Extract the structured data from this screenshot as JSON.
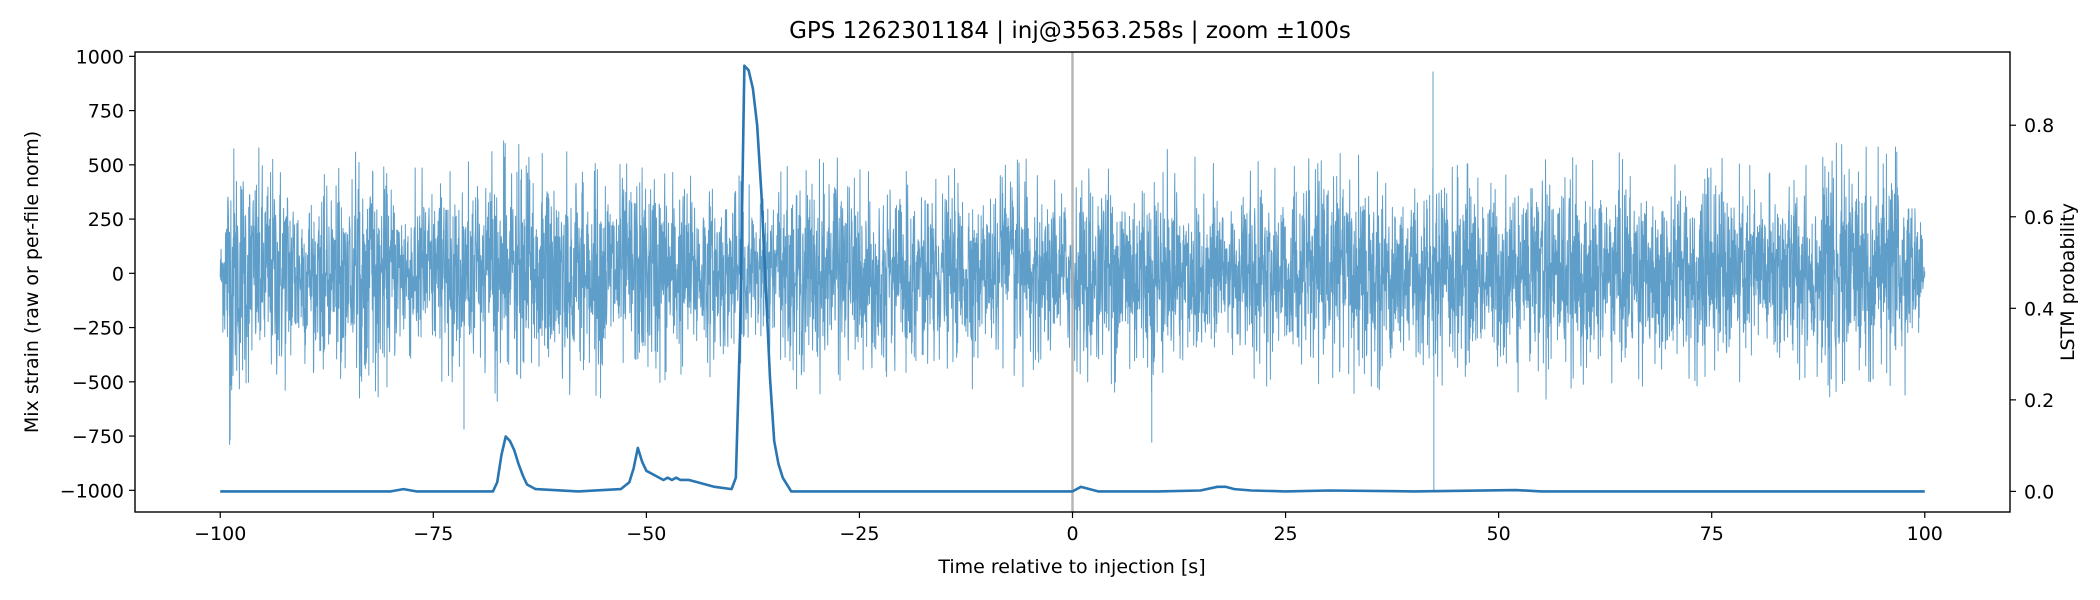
{
  "chart_data": {
    "type": "line",
    "title": "GPS 1262301184 | inj@3563.258s | zoom ±100s",
    "xlabel": "Time relative to injection [s]",
    "ylabel": "Mix strain (raw or per-file norm)",
    "y2label": "LSTM probability",
    "xlim": [
      -110,
      110
    ],
    "ylim": [
      -1100,
      1020
    ],
    "y2lim": [
      -0.045,
      0.96
    ],
    "x_ticks": [
      -100,
      -75,
      -50,
      -25,
      0,
      25,
      50,
      75,
      100
    ],
    "x_tick_labels": [
      "−100",
      "−75",
      "−50",
      "−25",
      "0",
      "25",
      "50",
      "75",
      "100"
    ],
    "y_ticks": [
      -1000,
      -750,
      -500,
      -250,
      0,
      250,
      500,
      750,
      1000
    ],
    "y_tick_labels": [
      "−1000",
      "−750",
      "−500",
      "−250",
      "0",
      "250",
      "500",
      "750",
      "1000"
    ],
    "y2_ticks": [
      0.0,
      0.2,
      0.4,
      0.6,
      0.8
    ],
    "y2_tick_labels": [
      "0.0",
      "0.2",
      "0.4",
      "0.6",
      "0.8"
    ],
    "grid": false,
    "vline": {
      "x": 0,
      "color": "#b0b0b0"
    },
    "series": [
      {
        "axis": "left",
        "color": "#5f9ec9",
        "x_range": [
          -100,
          100
        ],
        "typical_amplitude": 300,
        "envelope": [
          [
            -100,
            150
          ],
          [
            -99,
            780
          ],
          [
            -96,
            600
          ],
          [
            -93,
            650
          ],
          [
            -90,
            500
          ],
          [
            -88,
            450
          ],
          [
            -85,
            560
          ],
          [
            -82,
            600
          ],
          [
            -79,
            480
          ],
          [
            -76,
            500
          ],
          [
            -73,
            520
          ],
          [
            -70,
            550
          ],
          [
            -66,
            640
          ],
          [
            -63,
            560
          ],
          [
            -60,
            600
          ],
          [
            -56,
            580
          ],
          [
            -52,
            560
          ],
          [
            -48,
            600
          ],
          [
            -45,
            520
          ],
          [
            -42,
            470
          ],
          [
            -39,
            450
          ],
          [
            -36,
            450
          ],
          [
            -32,
            560
          ],
          [
            -29,
            580
          ],
          [
            -26,
            520
          ],
          [
            -23,
            480
          ],
          [
            -20,
            500
          ],
          [
            -17,
            450
          ],
          [
            -14,
            480
          ],
          [
            -11,
            560
          ],
          [
            -8,
            520
          ],
          [
            -5,
            540
          ],
          [
            -2,
            450
          ],
          [
            1,
            500
          ],
          [
            4,
            520
          ],
          [
            7,
            620
          ],
          [
            9,
            560
          ],
          [
            12,
            580
          ],
          [
            15,
            540
          ],
          [
            18,
            520
          ],
          [
            21,
            500
          ],
          [
            24,
            560
          ],
          [
            27,
            520
          ],
          [
            30,
            560
          ],
          [
            33,
            580
          ],
          [
            36,
            540
          ],
          [
            40,
            500
          ],
          [
            43,
            520
          ],
          [
            46,
            560
          ],
          [
            49,
            500
          ],
          [
            52,
            550
          ],
          [
            55,
            600
          ],
          [
            58,
            540
          ],
          [
            61,
            520
          ],
          [
            65,
            580
          ],
          [
            68,
            500
          ],
          [
            71,
            530
          ],
          [
            74,
            560
          ],
          [
            77,
            540
          ],
          [
            80,
            500
          ],
          [
            83,
            560
          ],
          [
            86,
            500
          ],
          [
            89,
            600
          ],
          [
            92,
            640
          ],
          [
            94,
            720
          ],
          [
            96,
            580
          ],
          [
            98,
            620
          ],
          [
            100,
            200
          ]
        ],
        "spikes": [
          {
            "x": 42.3,
            "y": 930
          },
          {
            "x": 42.4,
            "y": -1000
          },
          {
            "x": 9.3,
            "y": -780
          },
          {
            "x": -98.9,
            "y": -790
          },
          {
            "x": -71.4,
            "y": -720
          }
        ]
      },
      {
        "axis": "right",
        "color": "#2a76b2",
        "x": [
          -100,
          -80,
          -78.5,
          -77,
          -75,
          -68,
          -67.5,
          -67,
          -66.5,
          -66,
          -65.5,
          -65,
          -64.5,
          -64,
          -63,
          -58,
          -53,
          -52,
          -51.5,
          -51,
          -50.5,
          -50,
          -49,
          -48,
          -47.5,
          -47,
          -46.5,
          -46,
          -45,
          -44,
          -42,
          -40,
          -39.5,
          -39,
          -38.5,
          -38,
          -37.5,
          -37,
          -36.5,
          -36,
          -35.5,
          -35,
          -34.5,
          -34,
          -33,
          -25,
          -15,
          0,
          1,
          2,
          3,
          5,
          10,
          15,
          17,
          18,
          19,
          21,
          25,
          30,
          40,
          52,
          55,
          60,
          80,
          100
        ],
        "y": [
          0.0,
          0.0,
          0.005,
          0.0,
          0.0,
          0.0,
          0.02,
          0.08,
          0.12,
          0.11,
          0.09,
          0.06,
          0.035,
          0.015,
          0.005,
          0.0,
          0.005,
          0.02,
          0.05,
          0.095,
          0.065,
          0.045,
          0.035,
          0.025,
          0.03,
          0.025,
          0.03,
          0.025,
          0.025,
          0.02,
          0.01,
          0.005,
          0.03,
          0.35,
          0.93,
          0.92,
          0.88,
          0.8,
          0.65,
          0.45,
          0.25,
          0.11,
          0.06,
          0.03,
          0.0,
          0.0,
          0.0,
          0.0,
          0.01,
          0.005,
          0.0,
          0.0,
          0.0,
          0.002,
          0.01,
          0.01,
          0.005,
          0.002,
          0.0,
          0.002,
          0.0,
          0.003,
          0.0,
          0.0,
          0.0,
          0.0
        ]
      }
    ]
  }
}
